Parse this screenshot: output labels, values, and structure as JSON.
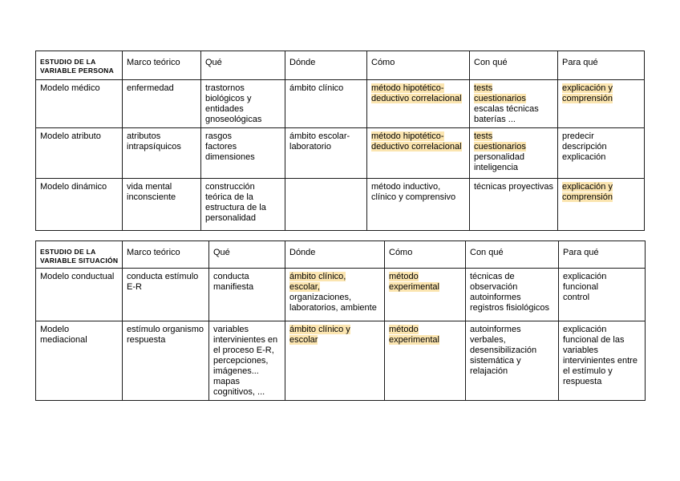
{
  "page": {
    "background": "#ffffff",
    "border_color": "#1b1b1b",
    "text_color": "#000000",
    "highlight_color": "#fbe5b0"
  },
  "tables": [
    {
      "name": "estudio-variable-persona",
      "title": "ESTUDIO DE LA VARIABLE PERSONA",
      "header": [
        [
          {
            "t": "ESTUDIO DE LA",
            "br": true
          },
          {
            "t": "VARIABLE PERSONA"
          }
        ],
        [
          {
            "t": "Marco teórico"
          }
        ],
        [
          {
            "t": "Qué"
          }
        ],
        [
          {
            "t": "Dónde"
          }
        ],
        [
          {
            "t": "Cómo"
          }
        ],
        [
          {
            "t": "Con qué"
          }
        ],
        [
          {
            "t": "Para qué"
          }
        ]
      ],
      "rows": [
        [
          [
            {
              "t": "Modelo médico"
            }
          ],
          [
            {
              "t": "enfermedad"
            }
          ],
          [
            {
              "t": "trastornos biológicos y entidades gnoseológicas"
            }
          ],
          [
            {
              "t": "ámbito clínico"
            }
          ],
          [
            {
              "t": "método hipotético-deductivo correlacional",
              "hl": true
            }
          ],
          [
            {
              "t": "tests",
              "hl": true,
              "br": true
            },
            {
              "t": "cuestionarios",
              "hl": true,
              "br": true
            },
            {
              "t": "escalas técnicas baterías ..."
            }
          ],
          [
            {
              "t": "explicación y comprensión",
              "hl": true
            }
          ]
        ],
        [
          [
            {
              "t": "Modelo atributo"
            }
          ],
          [
            {
              "t": "atributos intrapsíquicos"
            }
          ],
          [
            {
              "t": "rasgos",
              "br": true
            },
            {
              "t": "factores",
              "br": true
            },
            {
              "t": "dimensiones"
            }
          ],
          [
            {
              "t": "ámbito escolar-",
              "br": true
            },
            {
              "t": "laboratorio"
            }
          ],
          [
            {
              "t": "método hipotético-deductivo correlacional",
              "hl": true
            }
          ],
          [
            {
              "t": "tests",
              "hl": true,
              "br": true
            },
            {
              "t": "cuestionarios",
              "hl": true,
              "br": true
            },
            {
              "t": "personalidad inteligencia"
            }
          ],
          [
            {
              "t": "predecir",
              "br": true
            },
            {
              "t": "descripción",
              "br": true
            },
            {
              "t": "explicación"
            }
          ]
        ],
        [
          [
            {
              "t": "Modelo dinámico"
            }
          ],
          [
            {
              "t": "vida mental inconsciente"
            }
          ],
          [
            {
              "t": "construcción teórica de la estructura de la personalidad"
            }
          ],
          [],
          [
            {
              "t": "método inductivo, clínico y comprensivo"
            }
          ],
          [
            {
              "t": "técnicas proyectivas"
            }
          ],
          [
            {
              "t": "explicación y comprensión",
              "hl": true
            }
          ]
        ]
      ]
    },
    {
      "name": "estudio-variable-situacion",
      "title": "ESTUDIO DE LA VARIABLE SITUACIÓN",
      "header": [
        [
          {
            "t": "ESTUDIO DE LA",
            "br": true
          },
          {
            "t": "VARIABLE SITUACIÓN"
          }
        ],
        [
          {
            "t": "Marco teórico"
          }
        ],
        [
          {
            "t": "Qué"
          }
        ],
        [
          {
            "t": "Dónde"
          }
        ],
        [
          {
            "t": "Cómo"
          }
        ],
        [
          {
            "t": "Con qué"
          }
        ],
        [
          {
            "t": "Para qué"
          }
        ]
      ],
      "rows": [
        [
          [
            {
              "t": "Modelo conductual"
            }
          ],
          [
            {
              "t": "conducta estímulo E-R"
            }
          ],
          [
            {
              "t": "conducta manifiesta"
            }
          ],
          [
            {
              "t": "ámbito clínico,",
              "hl": true,
              "br": true
            },
            {
              "t": "escolar,",
              "hl": true,
              "br": true
            },
            {
              "t": "organizaciones, laboratorios, ambiente"
            }
          ],
          [
            {
              "t": "método experimental",
              "hl": true
            }
          ],
          [
            {
              "t": "técnicas de observación",
              "br": true
            },
            {
              "t": "autoinformes",
              "br": true
            },
            {
              "t": "registros fisiológicos"
            }
          ],
          [
            {
              "t": "explicación",
              "br": true
            },
            {
              "t": "funcional",
              "br": true
            },
            {
              "t": "control"
            }
          ]
        ],
        [
          [
            {
              "t": "Modelo",
              "br": true
            },
            {
              "t": "mediacional"
            }
          ],
          [
            {
              "t": "estímulo organismo respuesta"
            }
          ],
          [
            {
              "t": "variables intervinientes en el proceso E-R, percepciones, imágenes... mapas cognitivos, ..."
            }
          ],
          [
            {
              "t": "ámbito clínico y escolar",
              "hl": true
            }
          ],
          [
            {
              "t": "método experimental",
              "hl": true
            }
          ],
          [
            {
              "t": "autoinformes verbales, desensibilización sistemática y relajación"
            }
          ],
          [
            {
              "t": "explicación funcional de las variables intervinientes entre el estímulo y respuesta"
            }
          ]
        ]
      ]
    }
  ]
}
